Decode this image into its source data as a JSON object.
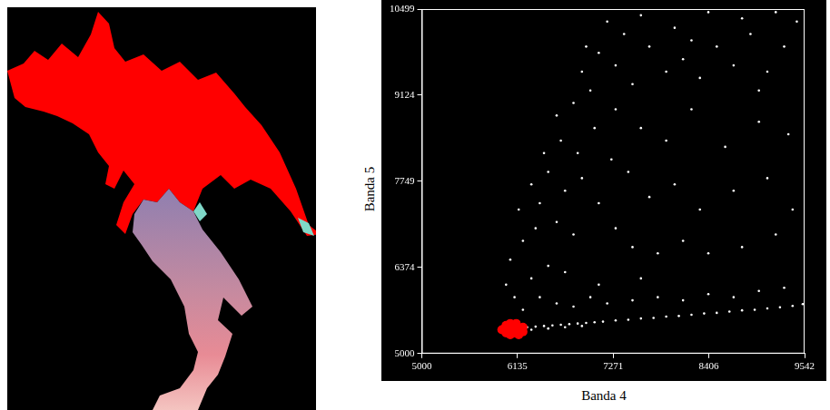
{
  "chart_data": {
    "type": "scatter",
    "x_label": "Banda 4",
    "y_label": "Banda 5",
    "xlim": [
      5000,
      9542
    ],
    "ylim": [
      5000,
      10499
    ],
    "xticks": [
      5000,
      6135,
      7271,
      8406,
      9542
    ],
    "yticks": [
      5000,
      6374,
      7749,
      9124,
      10499
    ],
    "grid": false,
    "series": [
      {
        "color": "#ffffff",
        "marker": "circle",
        "x": [
          6250,
          6350,
          6450,
          6550,
          6650,
          6750,
          6850,
          6950,
          7050,
          7150,
          7300,
          7450,
          7600,
          7750,
          7900,
          8050,
          8200,
          8350,
          8500,
          8650,
          8800,
          8950,
          9100,
          9250,
          9400,
          9520,
          6300,
          6500,
          6700,
          6900,
          6200,
          6400,
          6600,
          6800,
          7000,
          7200,
          7500,
          7800,
          8100,
          8400,
          8700,
          9000,
          9300,
          6100,
          6300,
          6500,
          6000,
          6700,
          7100,
          7600,
          6050,
          6200,
          6350,
          6150,
          6400,
          6600,
          6800,
          6300,
          6500,
          6700,
          6900,
          7100,
          7300,
          7500,
          7800,
          8100,
          8400,
          8800,
          9200,
          6450,
          6650,
          6850,
          7050,
          7250,
          7450,
          7700,
          8000,
          8300,
          8700,
          9100,
          9400,
          6600,
          6800,
          7000,
          7300,
          7600,
          7900,
          8200,
          8600,
          9000,
          6900,
          7100,
          7300,
          7500,
          7700,
          7900,
          8100,
          8300,
          8500,
          8700,
          8900,
          9100,
          9300,
          9450,
          7200,
          7600,
          8000,
          8400,
          8800,
          9200,
          7400,
          6950,
          8200,
          9000,
          9350
        ],
        "y": [
          5420,
          5430,
          5440,
          5450,
          5460,
          5470,
          5480,
          5490,
          5500,
          5510,
          5530,
          5540,
          5560,
          5570,
          5590,
          5600,
          5620,
          5640,
          5650,
          5670,
          5690,
          5700,
          5720,
          5740,
          5760,
          5790,
          5380,
          5400,
          5420,
          5440,
          5700,
          5900,
          5800,
          5750,
          5900,
          5800,
          5850,
          5900,
          5850,
          5950,
          5900,
          6000,
          6050,
          5900,
          6200,
          6400,
          6100,
          6300,
          6100,
          6200,
          6500,
          6800,
          7000,
          7300,
          7400,
          7100,
          6900,
          7700,
          7900,
          7600,
          7800,
          7400,
          7000,
          6700,
          6600,
          6800,
          6600,
          6700,
          6900,
          8200,
          8400,
          8200,
          8600,
          8100,
          7900,
          7500,
          7700,
          7300,
          7600,
          7800,
          7300,
          8800,
          9000,
          9200,
          8900,
          8600,
          8400,
          8900,
          8300,
          8700,
          9500,
          9800,
          9600,
          9300,
          9900,
          9500,
          9700,
          9400,
          9900,
          9600,
          10100,
          9500,
          9900,
          10300,
          10300,
          10400,
          10200,
          10450,
          10350,
          10450,
          10100,
          9900,
          10000,
          9200,
          8500
        ]
      },
      {
        "color": "#ff0000",
        "marker": "circle",
        "x": [
          5950,
          6000,
          6000,
          6050,
          6050,
          6050,
          6100,
          6100,
          6150,
          6150,
          6200,
          6200,
          5980,
          6120
        ],
        "y": [
          5380,
          5330,
          5450,
          5300,
          5400,
          5480,
          5330,
          5430,
          5380,
          5300,
          5420,
          5350,
          5400,
          5480
        ]
      }
    ]
  }
}
